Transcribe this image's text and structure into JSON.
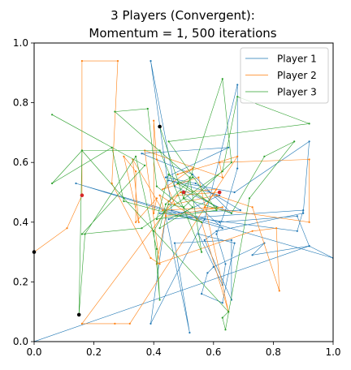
{
  "chart_data": {
    "type": "line",
    "title_lines": [
      "3 Players (Convergent):",
      "Momentum = 1, 500 iterations"
    ],
    "xlabel": "",
    "ylabel": "",
    "xlim": [
      0,
      1
    ],
    "ylim": [
      0,
      1
    ],
    "xticks": [
      "0.0",
      "0.2",
      "0.4",
      "0.6",
      "0.8",
      "1.0"
    ],
    "yticks": [
      "0.0",
      "0.2",
      "0.4",
      "0.6",
      "0.8",
      "1.0"
    ],
    "grid": false,
    "legend_position": "top-right",
    "series": [
      {
        "name": "Player 1",
        "color": "#1f77b4",
        "points": [
          [
            0.0,
            0.0
          ],
          [
            0.92,
            0.32
          ],
          [
            0.88,
            0.42
          ],
          [
            0.62,
            0.4
          ],
          [
            0.46,
            0.44
          ],
          [
            0.39,
            0.94
          ],
          [
            0.47,
            0.52
          ],
          [
            0.66,
            0.43
          ],
          [
            0.53,
            0.56
          ],
          [
            0.36,
            0.63
          ],
          [
            0.65,
            0.65
          ],
          [
            0.44,
            0.55
          ],
          [
            0.54,
            0.53
          ],
          [
            0.69,
            0.44
          ],
          [
            0.42,
            0.43
          ],
          [
            0.88,
            0.37
          ],
          [
            0.9,
            0.44
          ],
          [
            0.45,
            0.41
          ],
          [
            0.62,
            0.49
          ],
          [
            0.45,
            0.54
          ],
          [
            0.67,
            0.5
          ],
          [
            0.92,
            0.67
          ],
          [
            0.9,
            0.43
          ],
          [
            0.61,
            0.37
          ],
          [
            0.57,
            0.34
          ],
          [
            0.66,
            0.14
          ],
          [
            0.66,
            0.34
          ],
          [
            0.47,
            0.33
          ],
          [
            0.52,
            0.03
          ],
          [
            0.44,
            0.42
          ],
          [
            0.39,
            0.06
          ],
          [
            0.57,
            0.41
          ],
          [
            0.68,
            0.86
          ],
          [
            0.68,
            0.58
          ],
          [
            0.64,
            0.44
          ],
          [
            0.61,
            0.36
          ],
          [
            0.64,
            0.26
          ],
          [
            0.63,
            0.19
          ],
          [
            0.55,
            0.36
          ],
          [
            0.67,
            0.33
          ],
          [
            0.63,
            0.13
          ],
          [
            0.56,
            0.16
          ],
          [
            0.58,
            0.23
          ],
          [
            0.6,
            0.25
          ],
          [
            0.77,
            0.33
          ],
          [
            0.73,
            0.29
          ],
          [
            0.92,
            0.32
          ],
          [
            1.0,
            0.28
          ],
          [
            0.14,
            0.53
          ],
          [
            0.63,
            0.38
          ],
          [
            0.5,
            0.5
          ]
        ]
      },
      {
        "name": "Player 2",
        "color": "#ff7f0e",
        "points": [
          [
            0.0,
            0.3
          ],
          [
            0.11,
            0.38
          ],
          [
            0.16,
            0.49
          ],
          [
            0.16,
            0.94
          ],
          [
            0.28,
            0.94
          ],
          [
            0.26,
            0.53
          ],
          [
            0.39,
            0.28
          ],
          [
            0.42,
            0.26
          ],
          [
            0.37,
            0.64
          ],
          [
            0.63,
            0.55
          ],
          [
            0.62,
            0.6
          ],
          [
            0.92,
            0.61
          ],
          [
            0.92,
            0.4
          ],
          [
            0.57,
            0.45
          ],
          [
            0.68,
            0.62
          ],
          [
            0.48,
            0.56
          ],
          [
            0.53,
            0.58
          ],
          [
            0.43,
            0.51
          ],
          [
            0.55,
            0.55
          ],
          [
            0.65,
            0.1
          ],
          [
            0.56,
            0.4
          ],
          [
            0.42,
            0.49
          ],
          [
            0.44,
            0.42
          ],
          [
            0.63,
            0.45
          ],
          [
            0.43,
            0.44
          ],
          [
            0.33,
            0.61
          ],
          [
            0.35,
            0.4
          ],
          [
            0.3,
            0.62
          ],
          [
            0.34,
            0.57
          ],
          [
            0.34,
            0.4
          ],
          [
            0.41,
            0.48
          ],
          [
            0.4,
            0.43
          ],
          [
            0.4,
            0.74
          ],
          [
            0.41,
            0.61
          ],
          [
            0.47,
            0.46
          ],
          [
            0.61,
            0.49
          ],
          [
            0.73,
            0.45
          ],
          [
            0.82,
            0.17
          ],
          [
            0.81,
            0.38
          ],
          [
            0.73,
            0.37
          ],
          [
            0.41,
            0.26
          ],
          [
            0.45,
            0.47
          ],
          [
            0.49,
            0.5
          ],
          [
            0.61,
            0.51
          ],
          [
            0.32,
            0.06
          ],
          [
            0.27,
            0.06
          ],
          [
            0.16,
            0.06
          ],
          [
            0.48,
            0.49
          ],
          [
            0.62,
            0.5
          ]
        ]
      },
      {
        "name": "Player 3",
        "color": "#2ca02c",
        "points": [
          [
            0.06,
            0.76
          ],
          [
            0.37,
            0.59
          ],
          [
            0.16,
            0.36
          ],
          [
            0.36,
            0.38
          ],
          [
            0.63,
            0.57
          ],
          [
            0.68,
            0.82
          ],
          [
            0.92,
            0.73
          ],
          [
            0.45,
            0.67
          ],
          [
            0.61,
            0.44
          ],
          [
            0.41,
            0.41
          ],
          [
            0.45,
            0.56
          ],
          [
            0.61,
            0.45
          ],
          [
            0.48,
            0.53
          ],
          [
            0.53,
            0.55
          ],
          [
            0.44,
            0.46
          ],
          [
            0.42,
            0.38
          ],
          [
            0.53,
            0.45
          ],
          [
            0.5,
            0.48
          ],
          [
            0.63,
            0.88
          ],
          [
            0.66,
            0.6
          ],
          [
            0.5,
            0.45
          ],
          [
            0.45,
            0.46
          ],
          [
            0.4,
            0.37
          ],
          [
            0.42,
            0.14
          ],
          [
            0.41,
            0.31
          ],
          [
            0.34,
            0.62
          ],
          [
            0.17,
            0.36
          ],
          [
            0.15,
            0.09
          ],
          [
            0.16,
            0.64
          ],
          [
            0.42,
            0.64
          ],
          [
            0.56,
            0.3
          ],
          [
            0.52,
            0.55
          ],
          [
            0.27,
            0.77
          ],
          [
            0.38,
            0.78
          ],
          [
            0.41,
            0.52
          ],
          [
            0.56,
            0.4
          ],
          [
            0.3,
            0.47
          ],
          [
            0.26,
            0.65
          ],
          [
            0.06,
            0.53
          ],
          [
            0.16,
            0.64
          ],
          [
            0.3,
            0.48
          ],
          [
            0.65,
            0.1
          ],
          [
            0.63,
            0.08
          ],
          [
            0.64,
            0.04
          ],
          [
            0.72,
            0.48
          ],
          [
            0.87,
            0.67
          ],
          [
            0.77,
            0.62
          ],
          [
            0.66,
            0.43
          ],
          [
            0.5,
            0.48
          ],
          [
            0.42,
            0.72
          ]
        ]
      }
    ],
    "markers": [
      {
        "color": "#000000",
        "x": 0.0,
        "y": 0.3
      },
      {
        "color": "#000000",
        "x": 0.15,
        "y": 0.09
      },
      {
        "color": "#000000",
        "x": 0.42,
        "y": 0.72
      },
      {
        "color": "#d62728",
        "x": 0.16,
        "y": 0.49
      },
      {
        "color": "#d62728",
        "x": 0.5,
        "y": 0.5
      },
      {
        "color": "#d62728",
        "x": 0.62,
        "y": 0.5
      }
    ]
  }
}
